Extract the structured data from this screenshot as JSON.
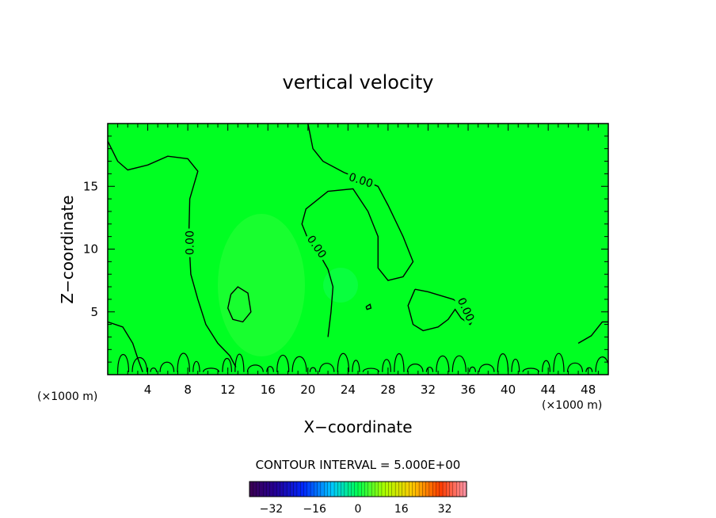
{
  "chart_data": {
    "type": "contour",
    "title": "vertical velocity",
    "xlabel": "X−coordinate",
    "ylabel": "Z−coordinate",
    "x_units_left": "(×1000 m)",
    "x_units_right": "(×1000 m)",
    "xlim": [
      0,
      50
    ],
    "ylim": [
      0,
      20
    ],
    "x_ticks": [
      4,
      8,
      12,
      16,
      20,
      24,
      28,
      32,
      36,
      40,
      44,
      48
    ],
    "y_ticks": [
      5,
      10,
      15
    ],
    "x_tick_labels": [
      "4",
      "8",
      "12",
      "16",
      "20",
      "24",
      "28",
      "32",
      "36",
      "40",
      "44",
      "48"
    ],
    "y_tick_labels": [
      "5",
      "10",
      "15"
    ],
    "contour_level_label": "0.00",
    "contour_interval_text": "CONTOUR INTERVAL = 5.000E+00",
    "field_color": "#00ff22",
    "colorbar": {
      "range": [
        -40,
        40
      ],
      "ticks": [
        -32,
        -16,
        0,
        16,
        32
      ],
      "tick_labels": [
        "−32",
        "−16",
        "0",
        "16",
        "32"
      ]
    },
    "contours": [
      {
        "name": "left-zero-contour",
        "points": [
          [
            0,
            18.6
          ],
          [
            1,
            17
          ],
          [
            2,
            16.3
          ],
          [
            4,
            16.7
          ],
          [
            6,
            17.4
          ],
          [
            8,
            17.2
          ],
          [
            9,
            16.2
          ],
          [
            8.2,
            14
          ],
          [
            8.1,
            11
          ],
          [
            8.3,
            8
          ],
          [
            9,
            6
          ],
          [
            9.8,
            4
          ],
          [
            11,
            2.5
          ],
          [
            12.2,
            1.5
          ],
          [
            12.8,
            0.6
          ]
        ]
      },
      {
        "name": "lower-left-contour",
        "points": [
          [
            0,
            4.2
          ],
          [
            1.5,
            3.8
          ],
          [
            2.5,
            2.5
          ],
          [
            3,
            1.3
          ],
          [
            3.5,
            0.2
          ]
        ]
      },
      {
        "name": "upper-middle-contour",
        "points": [
          [
            20,
            20
          ],
          [
            20.5,
            18
          ],
          [
            21.5,
            17
          ],
          [
            23.6,
            16.1
          ],
          [
            25.5,
            15.5
          ],
          [
            27,
            15
          ],
          [
            28,
            13.5
          ],
          [
            29.5,
            11
          ],
          [
            30.5,
            9
          ],
          [
            29.5,
            7.8
          ],
          [
            28,
            7.5
          ],
          [
            27,
            8.5
          ],
          [
            27,
            11
          ],
          [
            26,
            13
          ],
          [
            24.5,
            14.8
          ],
          [
            22,
            14.6
          ],
          [
            19.8,
            13.2
          ],
          [
            19.4,
            12
          ],
          [
            20,
            10.8
          ],
          [
            21,
            9.8
          ],
          [
            22,
            8.4
          ],
          [
            22.5,
            7
          ],
          [
            22.3,
            5
          ],
          [
            22,
            3
          ]
        ]
      },
      {
        "name": "island-contour",
        "points": [
          [
            12.3,
            6.4
          ],
          [
            13,
            7
          ],
          [
            14,
            6.5
          ],
          [
            14.3,
            5
          ],
          [
            13.5,
            4.2
          ],
          [
            12.5,
            4.4
          ],
          [
            12,
            5.3
          ],
          [
            12.3,
            6.4
          ]
        ]
      },
      {
        "name": "right-hook-contour",
        "points": [
          [
            30.7,
            6.8
          ],
          [
            32,
            6.6
          ],
          [
            34.5,
            6
          ],
          [
            36,
            5.3
          ],
          [
            36.6,
            4.5
          ],
          [
            36.2,
            4
          ],
          [
            35.3,
            4.5
          ],
          [
            34.7,
            5.2
          ],
          [
            34,
            4.4
          ],
          [
            33,
            3.8
          ],
          [
            31.5,
            3.5
          ],
          [
            30.5,
            4
          ],
          [
            30,
            5.5
          ],
          [
            30.7,
            6.8
          ]
        ]
      },
      {
        "name": "right-edge-contour",
        "points": [
          [
            47,
            2.5
          ],
          [
            48.3,
            3.1
          ],
          [
            49.4,
            4.2
          ],
          [
            50,
            4.2
          ]
        ]
      },
      {
        "name": "small-dot-contour",
        "points": [
          [
            25.8,
            5.4
          ],
          [
            26.2,
            5.6
          ],
          [
            26.3,
            5.3
          ],
          [
            25.9,
            5.2
          ],
          [
            25.8,
            5.4
          ]
        ]
      }
    ]
  }
}
